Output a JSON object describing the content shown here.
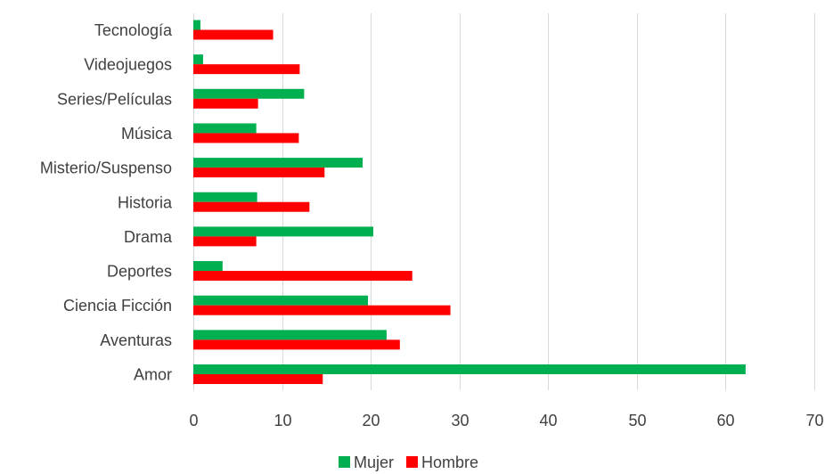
{
  "chart_data": {
    "type": "bar",
    "orientation": "horizontal",
    "categories": [
      "Amor",
      "Aventuras",
      "Ciencia Ficción",
      "Deportes",
      "Drama",
      "Historia",
      "Misterio/Suspenso",
      "Música",
      "Series/Películas",
      "Videojuegos",
      "Tecnología"
    ],
    "series": [
      {
        "name": "Mujer",
        "color": "#00b050",
        "values": [
          62.3,
          21.8,
          19.7,
          3.3,
          20.3,
          7.2,
          19.1,
          7.1,
          12.5,
          1.1,
          0.8
        ]
      },
      {
        "name": "Hombre",
        "color": "#ff0000",
        "values": [
          14.6,
          23.3,
          29.0,
          24.7,
          7.1,
          13.1,
          14.8,
          11.9,
          7.3,
          12.0,
          9.0
        ]
      }
    ],
    "xlim": [
      0,
      70
    ],
    "xticks": [
      "0",
      "10",
      "20",
      "30",
      "40",
      "50",
      "60",
      "70"
    ],
    "title": "",
    "xlabel": "",
    "ylabel": "",
    "grid": "vertical",
    "legend_position": "bottom",
    "gridline_color": "#d9d9d9"
  }
}
